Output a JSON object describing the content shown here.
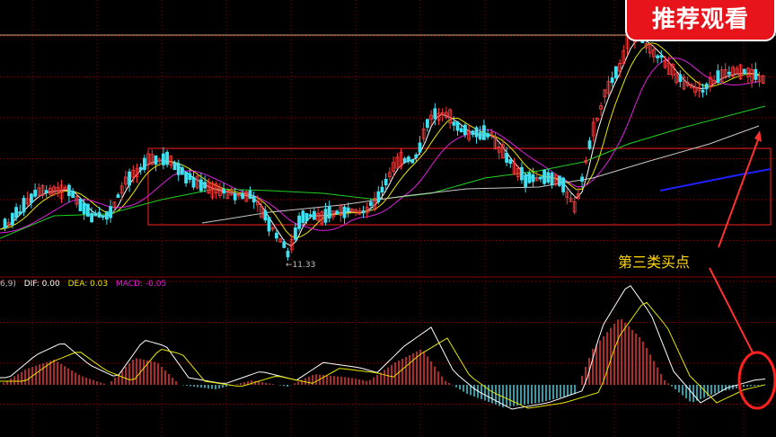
{
  "badge": {
    "text": "推荐观看"
  },
  "annotations": {
    "low_price": "←11.33",
    "buy_point": "第三类买点"
  },
  "macd_legend": {
    "prefix": "6,9)",
    "dif": "DIF: 0.00",
    "dea": "DEA: 0.03",
    "macd": "MACD: -0.05"
  },
  "colors": {
    "up_candle": "#ff3b3b",
    "down_candle": "#40e0f0",
    "grid": "#8b0000",
    "ma5": "#ffffff",
    "ma10": "#e8e800",
    "ma20": "#e020e0",
    "ma60": "#20d020",
    "ma120": "#c8c8c8",
    "ma250": "#2020ff",
    "highlight": "#ff2020",
    "horizontal_line": "#c8a880"
  }
}
